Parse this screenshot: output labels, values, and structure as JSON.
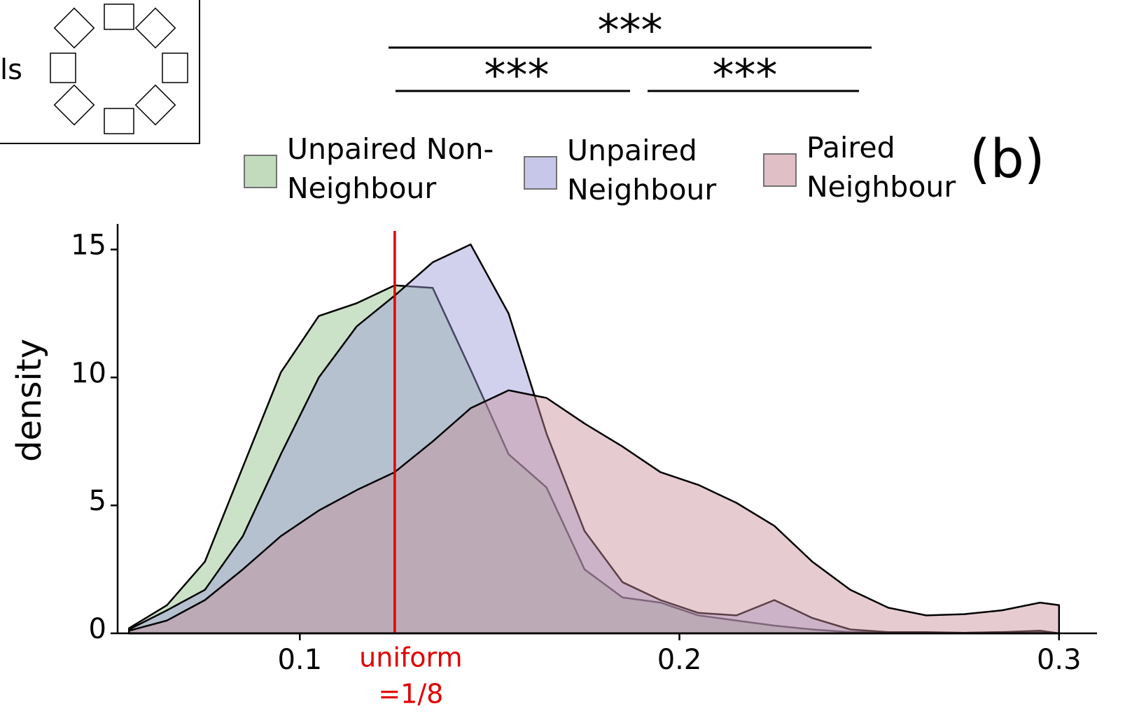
{
  "chart_data": {
    "type": "density",
    "inset": {
      "label": "ls"
    },
    "panel_label": "(b)",
    "significance": [
      "***",
      "***",
      "***"
    ],
    "ylabel": "density",
    "x": [
      0.055,
      0.065,
      0.075,
      0.085,
      0.095,
      0.105,
      0.115,
      0.125,
      0.135,
      0.145,
      0.155,
      0.165,
      0.175,
      0.185,
      0.195,
      0.205,
      0.215,
      0.225,
      0.235,
      0.245,
      0.255,
      0.265,
      0.275,
      0.285,
      0.295,
      0.3
    ],
    "series": [
      {
        "name": "Unpaired Non-Neighbour",
        "color": "#8fbf86",
        "values": [
          0.2,
          1.1,
          2.8,
          6.5,
          10.2,
          12.4,
          12.9,
          13.6,
          13.5,
          10.3,
          7.0,
          5.7,
          2.5,
          1.4,
          1.2,
          0.7,
          0.5,
          0.3,
          0.15,
          0.05,
          0.05,
          0.05,
          0.02,
          0.05,
          0.05,
          0.0
        ]
      },
      {
        "name": "Unpaired Neighbour",
        "color": "#9a9ad8",
        "values": [
          0.15,
          0.9,
          1.7,
          3.8,
          7.0,
          10.0,
          12.0,
          13.2,
          14.5,
          15.2,
          12.5,
          7.8,
          4.0,
          2.0,
          1.3,
          0.8,
          0.7,
          1.3,
          0.6,
          0.15,
          0.05,
          0.03,
          0.02,
          0.05,
          0.1,
          0.0
        ]
      },
      {
        "name": "Paired Neighbour",
        "color": "#c88e98",
        "values": [
          0.1,
          0.5,
          1.3,
          2.5,
          3.8,
          4.8,
          5.6,
          6.3,
          7.5,
          8.8,
          9.5,
          9.2,
          8.2,
          7.3,
          6.3,
          5.8,
          5.1,
          4.2,
          2.8,
          1.7,
          1.0,
          0.7,
          0.75,
          0.9,
          1.2,
          1.1
        ]
      }
    ],
    "vline": {
      "x": 0.125,
      "color": "#e00000",
      "label": [
        "uniform",
        "=1/8"
      ]
    },
    "xlim": [
      0.052,
      0.31
    ],
    "xticks": [
      0.1,
      0.2,
      0.3
    ],
    "ylim": [
      0,
      16
    ],
    "yticks": [
      0,
      5,
      10,
      15
    ]
  }
}
